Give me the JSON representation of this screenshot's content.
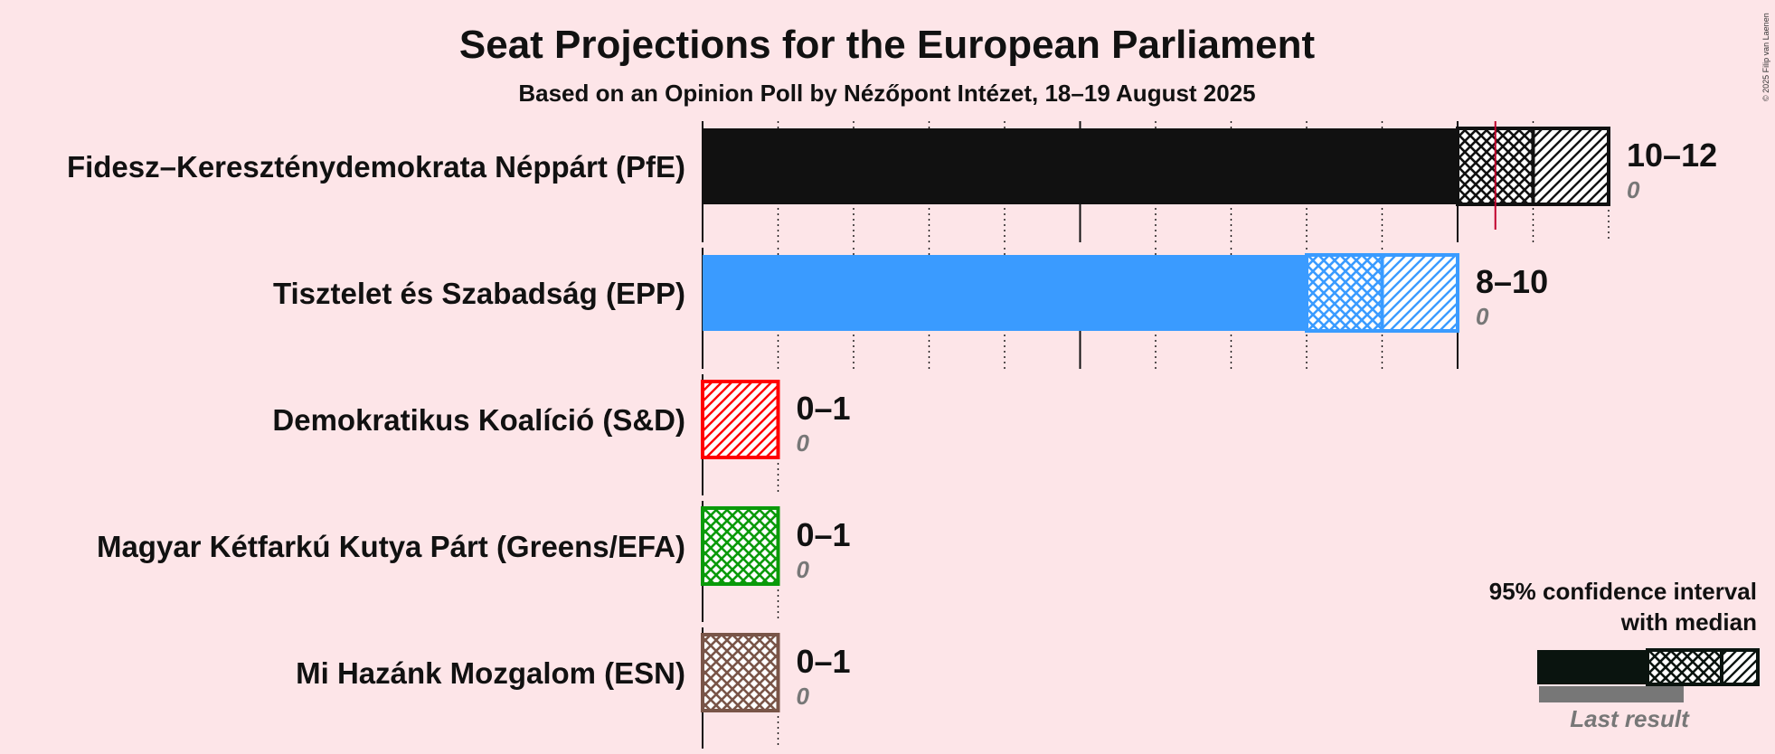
{
  "header": {
    "title": "Seat Projections for the European Parliament",
    "subtitle": "Based on an Opinion Poll by Nézőpont Intézet, 18–19 August 2025",
    "copyright": "© 2025 Filip van Laenen"
  },
  "legend": {
    "ci_line1": "95% confidence interval",
    "ci_line2": "with median",
    "last_result": "Last result"
  },
  "chart_data": {
    "type": "bar",
    "orientation": "horizontal",
    "title": "Seat Projections for the European Parliament",
    "subtitle": "Based on an Opinion Poll by Nézőpont Intézet, 18–19 August 2025",
    "xlim": [
      0,
      12
    ],
    "median_marker": 10.5,
    "parties": [
      {
        "name": "Fidesz–Kereszténydemokrata Néppárt (PfE)",
        "low": 10,
        "median": 11,
        "high": 12,
        "range_label": "10–12",
        "last_result": "0",
        "color": "#111111"
      },
      {
        "name": "Tisztelet és Szabadság (EPP)",
        "low": 8,
        "median": 9,
        "high": 10,
        "range_label": "8–10",
        "last_result": "0",
        "color": "#3a9bff"
      },
      {
        "name": "Demokratikus Koalíció (S&D)",
        "low": 0,
        "median": 0,
        "high": 1,
        "range_label": "0–1",
        "last_result": "0",
        "color": "#ff0000"
      },
      {
        "name": "Magyar Kétfarkú Kutya Párt (Greens/EFA)",
        "low": 0,
        "median": 1,
        "high": 1,
        "range_label": "0–1",
        "last_result": "0",
        "color": "#0a9a0a"
      },
      {
        "name": "Mi Hazánk Mozgalom (ESN)",
        "low": 0,
        "median": 1,
        "high": 1,
        "range_label": "0–1",
        "last_result": "0",
        "color": "#795548"
      }
    ]
  }
}
